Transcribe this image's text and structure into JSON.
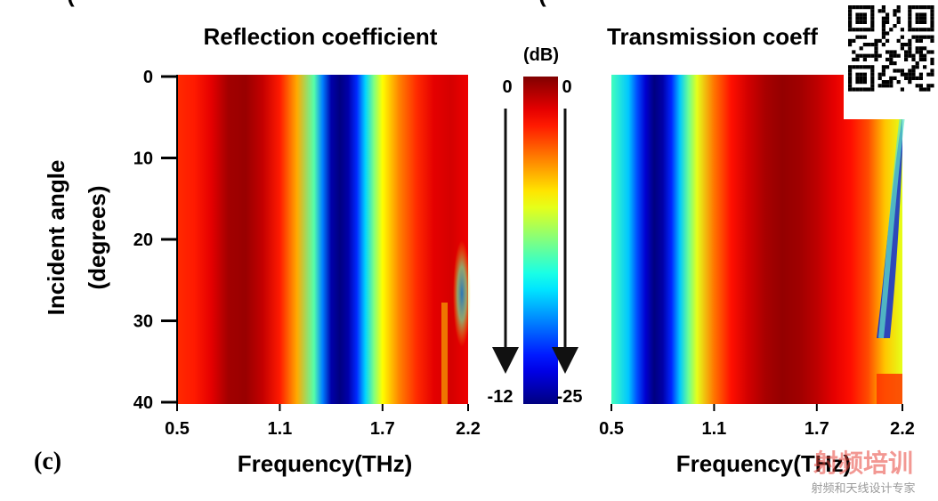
{
  "chart_data": [
    {
      "type": "heatmap",
      "title": "Reflection coefficient",
      "xlabel": "Frequency(THz)",
      "ylabel_line1": "Incident angle",
      "ylabel_line2": "(degrees)",
      "x_ticks": [
        "0.5",
        "1.1",
        "1.7",
        "2.2"
      ],
      "x_tick_values": [
        0.5,
        1.1,
        1.7,
        2.2
      ],
      "y_ticks": [
        "0",
        "10",
        "20",
        "30",
        "40"
      ],
      "y_tick_values": [
        0,
        10,
        20,
        30,
        40
      ],
      "xlim": [
        0.5,
        2.2
      ],
      "ylim": [
        0,
        40
      ],
      "colorscale_range_db": [
        -12,
        0
      ],
      "profile_freq_thz": [
        0.5,
        0.6,
        0.7,
        0.8,
        0.9,
        1.0,
        1.1,
        1.2,
        1.3,
        1.35,
        1.4,
        1.45,
        1.5,
        1.55,
        1.6,
        1.65,
        1.7,
        1.8,
        1.9,
        2.0,
        2.1,
        2.2
      ],
      "profile_db": [
        -2.0,
        -1.8,
        -1.2,
        -0.4,
        -0.3,
        -0.8,
        -1.8,
        -3.5,
        -6.5,
        -9.0,
        -11.5,
        -12.0,
        -11.5,
        -10.0,
        -8.0,
        -6.0,
        -4.5,
        -3.0,
        -2.0,
        -1.2,
        -1.0,
        -1.3
      ],
      "notes": "Low-reflection band (~-12 dB) centered near 1.45 THz, nearly independent of incident angle; small feature near 2.1-2.2 THz at 25-40 degrees."
    },
    {
      "type": "heatmap",
      "title": "Transmission coeff",
      "xlabel": "Frequency(THz)",
      "x_ticks": [
        "0.5",
        "1.1",
        "1.7",
        "2.2"
      ],
      "x_tick_values": [
        0.5,
        1.1,
        1.7,
        2.2
      ],
      "xlim": [
        0.5,
        2.2
      ],
      "ylim": [
        0,
        40
      ],
      "colorscale_range_db": [
        -25,
        0
      ],
      "profile_freq_thz": [
        0.5,
        0.6,
        0.65,
        0.7,
        0.75,
        0.8,
        0.85,
        0.9,
        0.95,
        1.0,
        1.1,
        1.2,
        1.3,
        1.4,
        1.5,
        1.6,
        1.7,
        1.8,
        1.9,
        2.0,
        2.1,
        2.2
      ],
      "profile_db": [
        -14,
        -17,
        -20,
        -23,
        -25,
        -24,
        -21,
        -17,
        -13,
        -10,
        -6,
        -3.5,
        -2,
        -1,
        -0.5,
        -0.8,
        -1.5,
        -2.5,
        -3.5,
        -5,
        -8,
        -10
      ],
      "notes": "Transmission notch (~-25 dB) near 0.75 THz; an angle-dependent dip appears near 2.0-2.2 THz for larger incident angles."
    }
  ],
  "colorbar": {
    "unit": "(dB)",
    "left_top": "0",
    "left_bottom": "-12",
    "right_top": "0",
    "right_bottom": "-25"
  },
  "panel_label": "(c)",
  "watermark": {
    "brand": "射频培训",
    "subtitle": "射频和天线设计专家"
  }
}
